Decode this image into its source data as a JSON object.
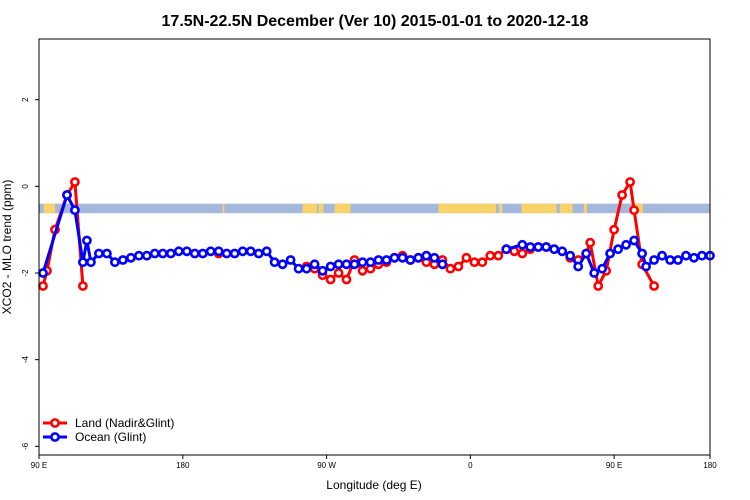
{
  "chart_data": {
    "type": "line",
    "title": "17.5N-22.5N December (Ver 10)   2015-01-01 to 2020-12-18",
    "xlabel": "Longitude (deg E)",
    "ylabel": "XCO2 - MLO trend (ppm)",
    "xlim": [
      90,
      510
    ],
    "ylim": [
      -6.2,
      3.4
    ],
    "x_ticks": [
      {
        "value": 90,
        "label": "90 E"
      },
      {
        "value": 180,
        "label": "180"
      },
      {
        "value": 270,
        "label": "90 W"
      },
      {
        "value": 360,
        "label": "0"
      },
      {
        "value": 450,
        "label": "90 E"
      },
      {
        "value": 540,
        "label": "180"
      }
    ],
    "y_ticks": [
      {
        "value": 2,
        "label": "2"
      },
      {
        "value": 0,
        "label": "0"
      },
      {
        "value": -2,
        "label": "-2"
      },
      {
        "value": -4,
        "label": "-4"
      },
      {
        "value": -6,
        "label": "-6"
      }
    ],
    "land_mask": {
      "y_range": [
        -0.62,
        -0.4
      ],
      "ocean_color": "#a4b8dc",
      "land_color": "#f8d36a",
      "land_segments": [
        [
          93,
          100
        ],
        [
          205,
          206
        ],
        [
          255,
          264
        ],
        [
          265,
          268
        ],
        [
          275,
          285
        ],
        [
          340,
          376
        ],
        [
          378,
          380
        ],
        [
          392,
          414
        ],
        [
          416,
          424
        ],
        [
          431,
          433
        ],
        [
          462,
          468
        ]
      ]
    },
    "series": [
      {
        "name": "Land (Nadir&Glint)",
        "color": "#ff0000",
        "segments": [
          {
            "x": [
              92.5,
              95,
              100,
              107.5,
              112.5,
              117.5
            ],
            "y": [
              -2.3,
              -1.95,
              -1.0,
              -0.2,
              0.1,
              -2.3
            ]
          },
          {
            "x": [
              202.5
            ],
            "y": [
              -1.55
            ]
          },
          {
            "x": [
              257.5,
              262.5,
              267.5,
              272.5,
              277.5,
              282.5,
              287.5,
              292.5,
              297.5,
              302.5,
              307.5,
              312.5,
              317.5,
              322.5,
              327.5,
              332.5,
              337.5,
              342.5,
              347.5,
              352.5,
              357.5,
              362.5,
              367.5,
              372.5,
              377.5,
              382.5,
              387.5,
              392.5,
              397.5,
              402.5,
              407.5,
              412.5
            ],
            "y": [
              -1.85,
              -1.9,
              -2.05,
              -2.15,
              -2.0,
              -2.15,
              -1.7,
              -1.95,
              -1.9,
              -1.8,
              -1.75,
              -1.65,
              -1.6,
              -1.7,
              -1.65,
              -1.75,
              -1.8,
              -1.7,
              -1.9,
              -1.85,
              -1.65,
              -1.75,
              -1.75,
              -1.6,
              -1.6,
              -1.45,
              -1.5,
              -1.55,
              -1.45,
              -1.4,
              -1.4,
              -1.45
            ]
          },
          {
            "x": [
              422.5,
              427.5,
              432.5,
              435,
              440,
              445,
              450,
              455,
              460,
              462.5,
              467.5,
              475
            ],
            "y": [
              -1.65,
              -1.7,
              -1.55,
              -1.3,
              -2.3,
              -1.95,
              -1.0,
              -0.2,
              0.1,
              -0.55,
              -1.8,
              -2.3
            ]
          }
        ]
      },
      {
        "name": "Ocean (Glint)",
        "color": "#0000ff",
        "segments": [
          {
            "x": [
              92.5,
              107.5,
              112.5,
              117.5,
              120,
              122.5,
              127.5,
              132.5,
              137.5,
              142.5,
              147.5,
              152.5,
              157.5,
              162.5,
              167.5,
              172.5,
              177.5,
              182.5,
              187.5,
              192.5,
              197.5,
              202.5,
              207.5,
              212.5,
              217.5,
              222.5,
              227.5,
              232.5,
              237.5,
              242.5,
              247.5,
              252.5,
              257.5,
              262.5,
              267.5,
              272.5,
              277.5,
              282.5,
              287.5,
              292.5,
              297.5,
              302.5,
              307.5,
              312.5,
              317.5,
              322.5,
              327.5,
              332.5,
              337.5,
              342.5
            ],
            "y": [
              -2.0,
              -0.2,
              -0.55,
              -1.75,
              -1.25,
              -1.75,
              -1.55,
              -1.55,
              -1.75,
              -1.7,
              -1.65,
              -1.6,
              -1.6,
              -1.55,
              -1.55,
              -1.55,
              -1.5,
              -1.5,
              -1.55,
              -1.55,
              -1.5,
              -1.5,
              -1.55,
              -1.55,
              -1.5,
              -1.5,
              -1.55,
              -1.5,
              -1.75,
              -1.8,
              -1.7,
              -1.9,
              -1.9,
              -1.8,
              -1.95,
              -1.85,
              -1.8,
              -1.8,
              -1.8,
              -1.75,
              -1.75,
              -1.7,
              -1.7,
              -1.65,
              -1.65,
              -1.7,
              -1.65,
              -1.6,
              -1.65,
              -1.8
            ]
          },
          {
            "x": [
              382.5,
              392.5,
              397.5,
              402.5,
              407.5,
              412.5,
              417.5,
              422.5,
              427.5,
              432.5,
              437.5,
              442.5,
              447.5,
              452.5,
              457.5,
              462.5,
              467.5,
              470,
              475,
              480,
              485,
              490,
              495,
              500,
              505,
              510
            ],
            "y": [
              -1.45,
              -1.35,
              -1.4,
              -1.4,
              -1.4,
              -1.45,
              -1.5,
              -1.6,
              -1.85,
              -1.55,
              -2.0,
              -1.9,
              -1.55,
              -1.45,
              -1.35,
              -1.25,
              -1.55,
              -1.85,
              -1.7,
              -1.6,
              -1.7,
              -1.7,
              -1.6,
              -1.65,
              -1.6,
              -1.6
            ]
          }
        ]
      }
    ],
    "legend": {
      "position": "bottom-left"
    }
  }
}
